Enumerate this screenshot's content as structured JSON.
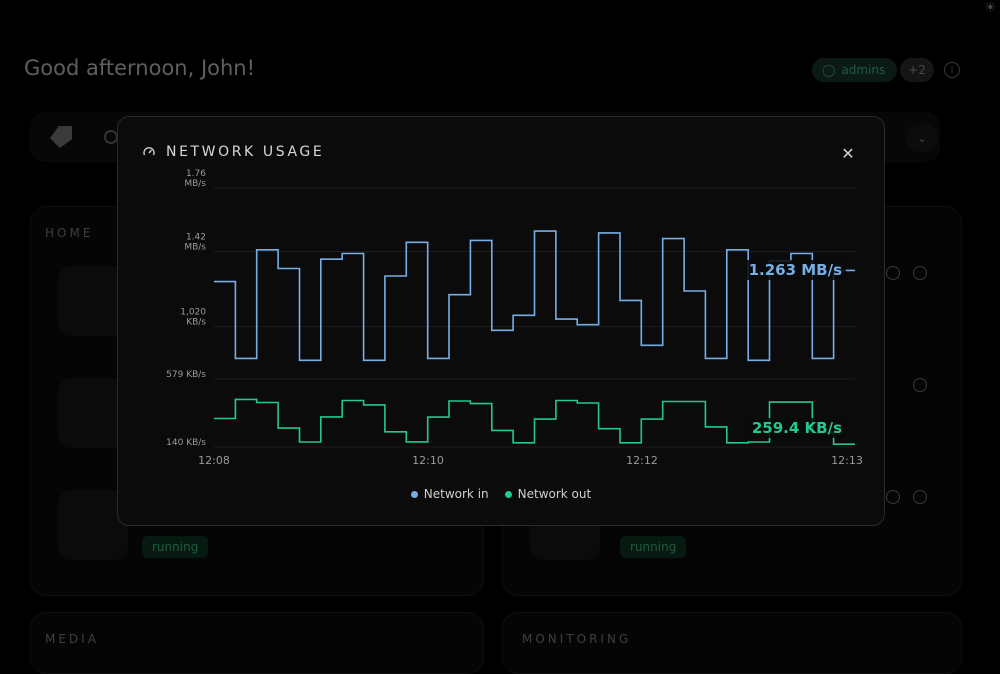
{
  "dashboard": {
    "greeting": "Good afternoon, John!",
    "user_chip": "admins",
    "plus_chip": "+2",
    "sections": {
      "home": "HOME",
      "media": "MEDIA",
      "monitoring": "MONITORING"
    },
    "status": "running"
  },
  "modal": {
    "title": "NETWORK USAGE",
    "close_icon": "close-icon",
    "gauge_icon": "gauge-icon"
  },
  "chart_data": {
    "type": "line",
    "x_ticks": [
      "12:08",
      "12:10",
      "12:12",
      "12:13"
    ],
    "panels": [
      {
        "name": "Network in",
        "color": "#76aee6",
        "y_ticks": [
          {
            "value": 1020,
            "label": [
              "1,020",
              "KB/s"
            ]
          },
          {
            "value": 1420,
            "label": [
              "1.42",
              "MB/s"
            ]
          },
          {
            "value": 1760,
            "label": [
              "1.76",
              "MB/s"
            ]
          }
        ],
        "ylim": [
          740,
          1760
        ],
        "values": [
          1260,
          850,
          1430,
          1330,
          840,
          1380,
          1410,
          840,
          1290,
          1470,
          850,
          1190,
          1480,
          1000,
          1080,
          1530,
          1060,
          1030,
          1520,
          1160,
          920,
          1490,
          1210,
          850,
          1430,
          840,
          1370,
          1410,
          850,
          1320
        ],
        "current_label": "1.263 MB/s"
      },
      {
        "name": "Network out",
        "color": "#22c98c",
        "y_ticks": [
          {
            "value": 140,
            "label": [
              "140 KB/s"
            ]
          },
          {
            "value": 579,
            "label": [
              "579 KB/s"
            ]
          }
        ],
        "ylim": [
          140,
          579
        ],
        "values": [
          324,
          447,
          427,
          262,
          172,
          334,
          440,
          412,
          238,
          173,
          333,
          437,
          420,
          247,
          167,
          320,
          440,
          424,
          258,
          167,
          320,
          434,
          434,
          270,
          167,
          172,
          430,
          430,
          233,
          158
        ],
        "current_label": "259.4 KB/s"
      }
    ],
    "legend": [
      "Network in",
      "Network out"
    ]
  }
}
